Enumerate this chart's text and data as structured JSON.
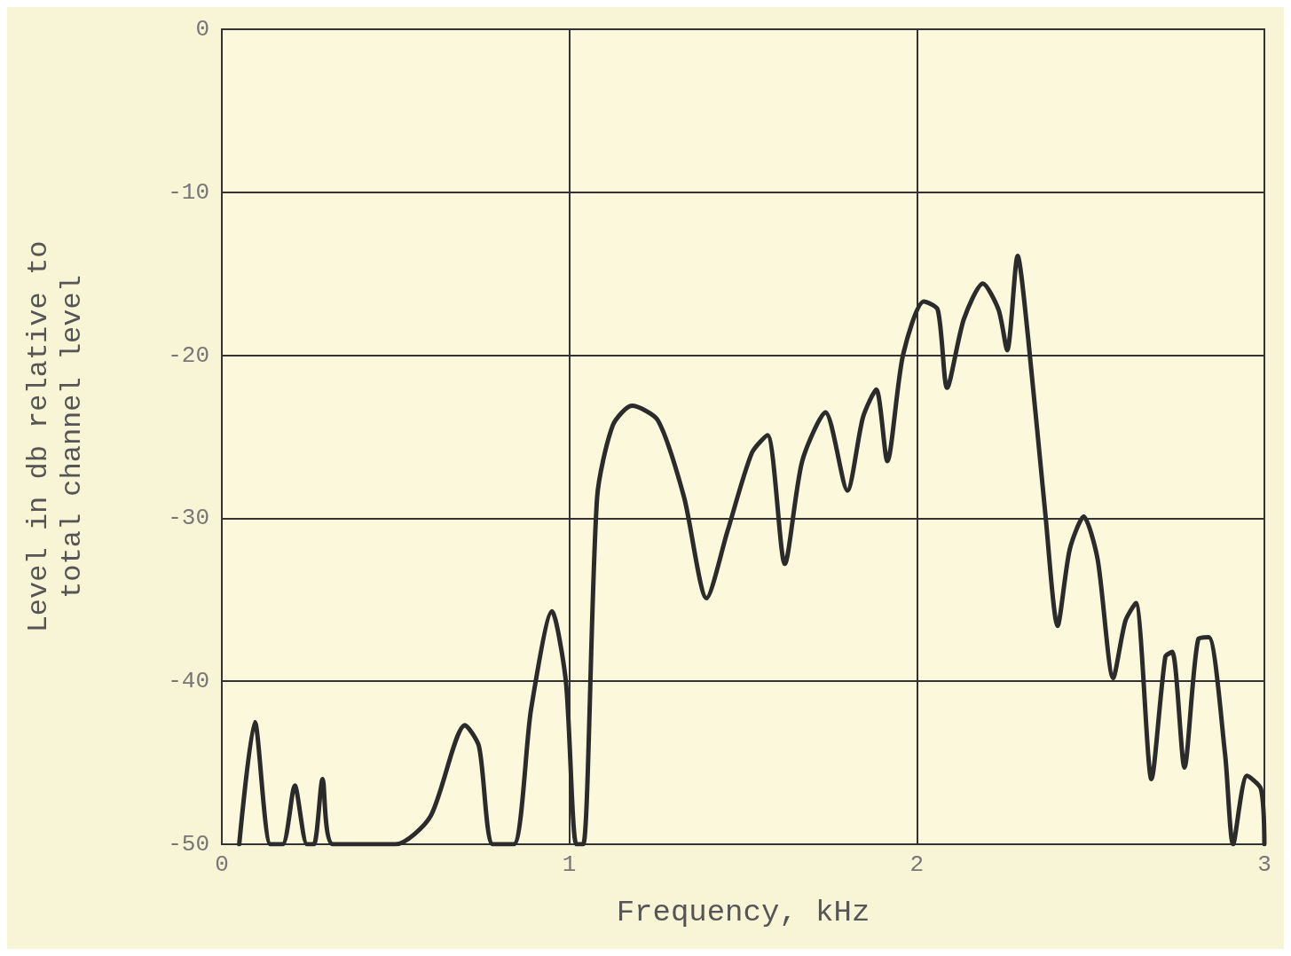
{
  "chart_data": {
    "type": "line",
    "xlabel": "Frequency, kHz",
    "ylabel": "Level in db relative to\ntotal channel level",
    "xlim": [
      0,
      3
    ],
    "ylim": [
      -50,
      0
    ],
    "xticks": [
      0,
      1,
      2,
      3
    ],
    "yticks": [
      0,
      -10,
      -20,
      -30,
      -40,
      -50
    ],
    "grid": true,
    "marker": "none",
    "line_style": "solid",
    "series": [
      {
        "color": "#2b2b2b",
        "x": [
          0.05,
          0.095,
          0.14,
          0.175,
          0.21,
          0.245,
          0.265,
          0.29,
          0.32,
          0.5,
          0.6,
          0.7,
          0.74,
          0.78,
          0.84,
          0.89,
          0.95,
          0.99,
          1.02,
          1.04,
          1.08,
          1.125,
          1.18,
          1.255,
          1.33,
          1.395,
          1.455,
          1.525,
          1.57,
          1.62,
          1.67,
          1.737,
          1.8,
          1.845,
          1.883,
          1.915,
          1.96,
          2.02,
          2.06,
          2.087,
          2.135,
          2.19,
          2.235,
          2.26,
          2.29,
          2.32,
          2.37,
          2.405,
          2.44,
          2.48,
          2.52,
          2.565,
          2.6,
          2.63,
          2.675,
          2.715,
          2.735,
          2.77,
          2.81,
          2.84,
          2.887,
          2.91,
          2.95,
          2.99,
          3.0
        ],
        "values": [
          -50,
          -42.5,
          -50,
          -50,
          -46.4,
          -50,
          -50,
          -46,
          -50,
          -50,
          -48.3,
          -42.7,
          -44,
          -50,
          -50,
          -41.7,
          -35.7,
          -40,
          -50,
          -50,
          -28.7,
          -24.3,
          -23.1,
          -24,
          -28.7,
          -34.9,
          -30.8,
          -26,
          -24.9,
          -32.8,
          -26.5,
          -23.5,
          -28.3,
          -23.8,
          -22.1,
          -26.5,
          -20,
          -16.7,
          -17.2,
          -22,
          -17.8,
          -15.6,
          -17.2,
          -19.7,
          -13.9,
          -18.9,
          -29.8,
          -36.6,
          -31.9,
          -29.9,
          -32.5,
          -39.8,
          -36.3,
          -35.2,
          -46,
          -38.5,
          -38.2,
          -45.3,
          -37.4,
          -37.3,
          -44.5,
          -50,
          -45.8,
          -46.6,
          -50
        ]
      }
    ]
  }
}
